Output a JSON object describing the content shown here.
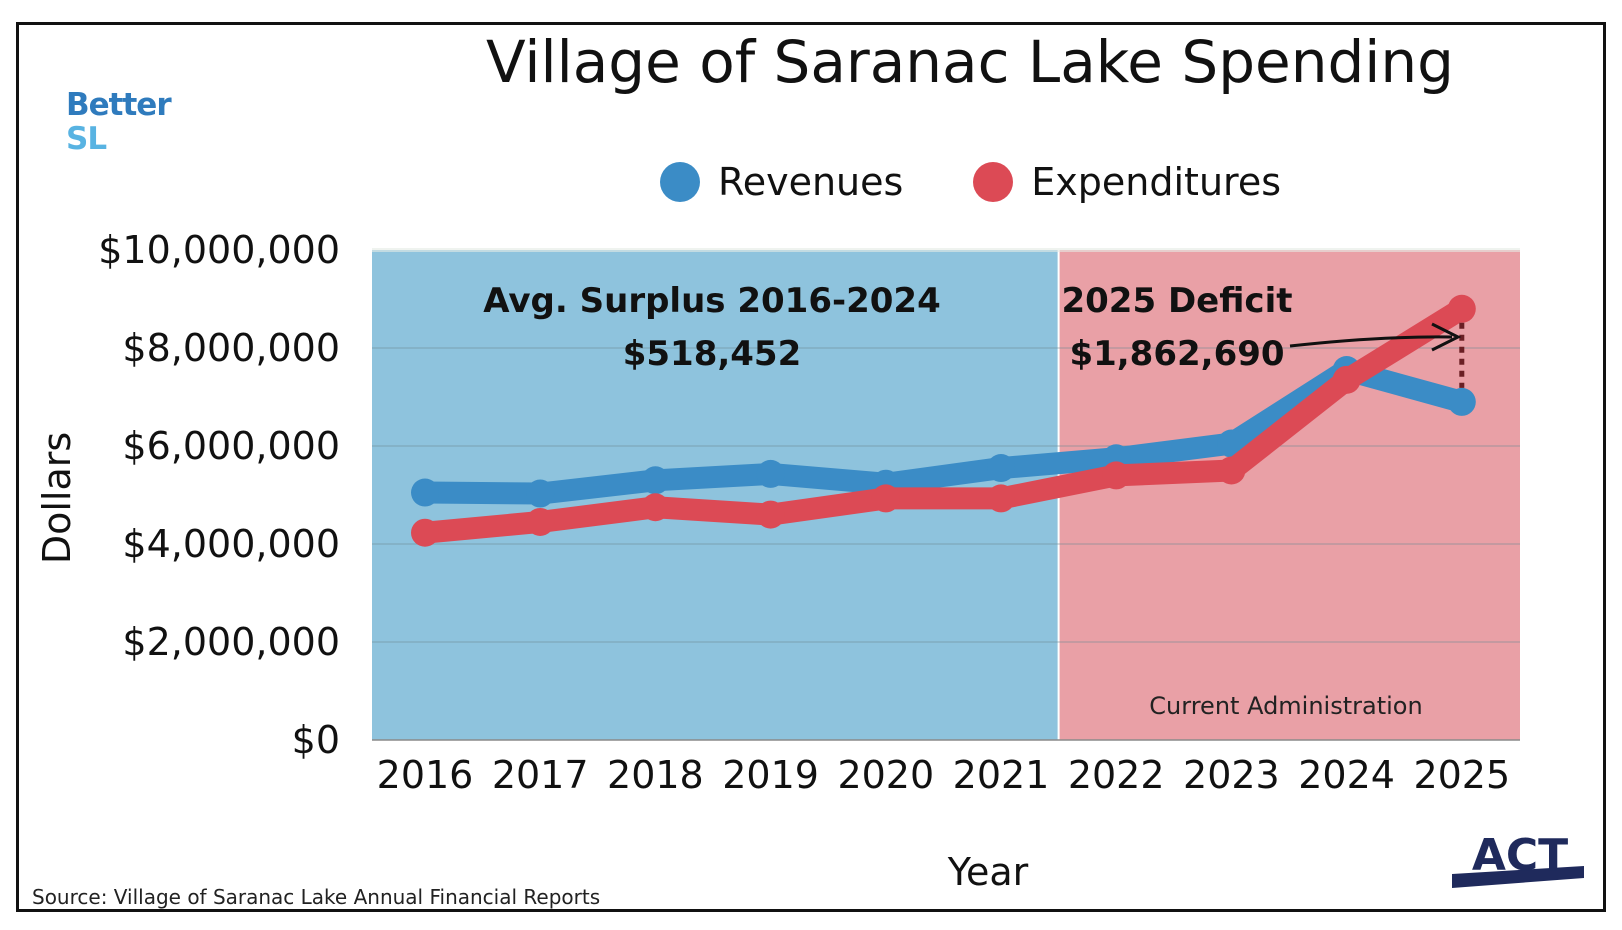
{
  "logo_left": {
    "line1": "Better",
    "line2": "SL"
  },
  "logo_right": "ACT",
  "footer": {
    "source": "Source: Village of Saranac Lake Annual Financial Reports"
  },
  "colors": {
    "revenues": "#3b8cc6",
    "expenditures": "#dc4a55",
    "past_band": "#8ec3dd",
    "current_band": "#e9a0a6"
  },
  "chart_data": {
    "type": "line",
    "title": "Village of Saranac Lake Spending",
    "xlabel": "Year",
    "ylabel": "Dollars",
    "legend_position": "top",
    "grid": true,
    "categories": [
      "2016",
      "2017",
      "2018",
      "2019",
      "2020",
      "2021",
      "2022",
      "2023",
      "2024",
      "2025"
    ],
    "ylim": [
      0,
      10000000
    ],
    "yticks": [
      0,
      2000000,
      4000000,
      6000000,
      8000000,
      10000000
    ],
    "ytick_labels": [
      "$0",
      "$2,000,000",
      "$4,000,000",
      "$6,000,000",
      "$8,000,000",
      "$10,000,000"
    ],
    "series": [
      {
        "name": "Revenues",
        "values": [
          5050000,
          5030000,
          5300000,
          5430000,
          5230000,
          5550000,
          5750000,
          6050000,
          7550000,
          6900000
        ]
      },
      {
        "name": "Expenditures",
        "values": [
          4230000,
          4450000,
          4750000,
          4600000,
          4930000,
          4930000,
          5400000,
          5500000,
          7350000,
          8800000
        ]
      }
    ],
    "regions": [
      {
        "name": "surplus-era",
        "from": "2016",
        "to": "2021"
      },
      {
        "name": "current-admin",
        "from": "2022",
        "to": "2025",
        "label": "Current Administration"
      }
    ],
    "annotations": {
      "surplus_line1": "Avg. Surplus 2016-2024",
      "surplus_line2": "$518,452",
      "deficit_line1": "2025 Deficit",
      "deficit_line2": "$1,862,690"
    }
  }
}
